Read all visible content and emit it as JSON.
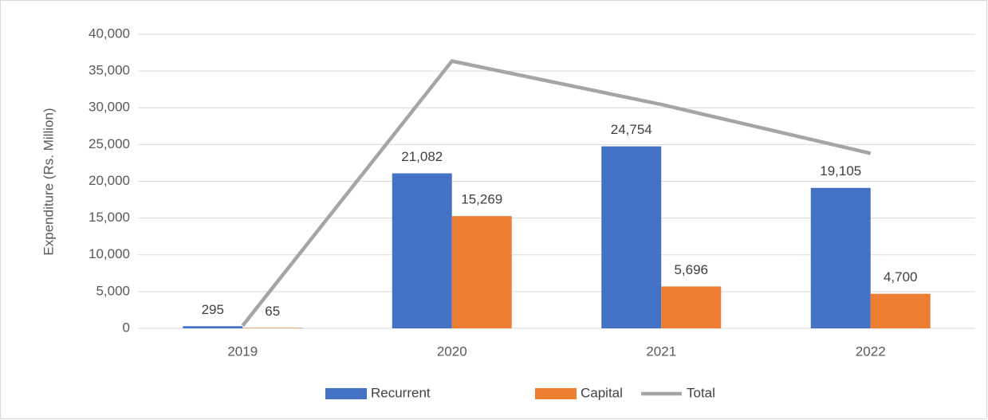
{
  "chart_data": {
    "type": "bar",
    "categories": [
      "2019",
      "2020",
      "2021",
      "2022"
    ],
    "y_axis_label": "Expenditure (Rs. Million)",
    "ylim": [
      0,
      40000
    ],
    "yticks": [
      0,
      {
        "value": 5000,
        "label": "5,000"
      },
      {
        "value": 10000,
        "label": "10,000"
      },
      {
        "value": 15000,
        "label": "15,000"
      },
      {
        "value": 20000,
        "label": "20,000"
      },
      {
        "value": 25000,
        "label": "25,000"
      },
      {
        "value": 30000,
        "label": "30,000"
      },
      {
        "value": 35000,
        "label": "35,000"
      },
      {
        "value": 40000,
        "label": "40,000"
      }
    ],
    "grid": true,
    "legend": "bottom",
    "series": [
      {
        "name": "Recurrent",
        "type": "bar",
        "color": "#4472c4",
        "values": [
          295,
          21082,
          24754,
          19105
        ],
        "value_labels": [
          "295",
          "21,082",
          "24,754",
          "19,105"
        ]
      },
      {
        "name": "Capital",
        "type": "bar",
        "color": "#ed7d31",
        "values": [
          65,
          15269,
          5696,
          4700
        ],
        "value_labels": [
          "65",
          "15,269",
          "5,696",
          "4,700"
        ]
      },
      {
        "name": "Total",
        "type": "line",
        "color": "#a5a5a5",
        "values": [
          360,
          36351,
          30450,
          23805
        ]
      }
    ]
  }
}
